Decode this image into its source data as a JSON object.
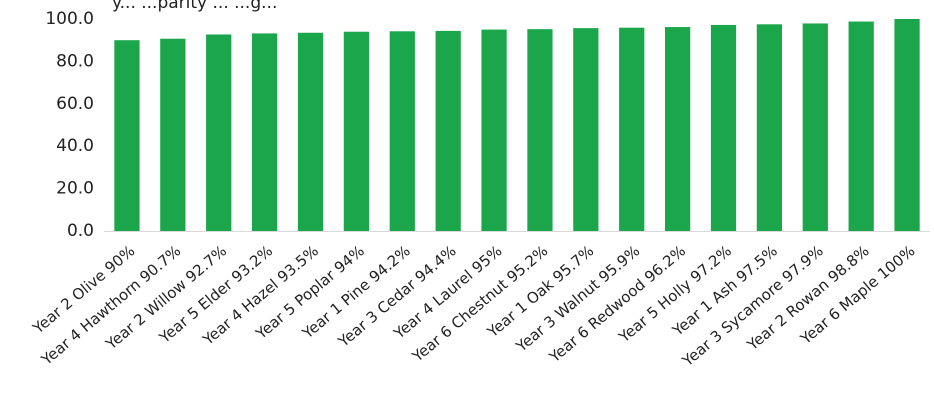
{
  "chart_data": {
    "type": "bar",
    "title_partial": "y... ...parity ... ...g...",
    "categories": [
      "Year 2 Olive 90%",
      "Year 4 Hawthorn 90.7%",
      "Year 2 Willow 92.7%",
      "Year 5 Elder 93.2%",
      "Year 4 Hazel 93.5%",
      "Year 5 Poplar 94%",
      "Year 1 Pine 94.2%",
      "Year 3 Cedar 94.4%",
      "Year 4 Laurel 95%",
      "Year 6 Chestnut 95.2%",
      "Year 1 Oak 95.7%",
      "Year 3 Walnut 95.9%",
      "Year 6 Redwood 96.2%",
      "Year 5 Holly 97.2%",
      "Year 1 Ash 97.5%",
      "Year 3 Sycamore 97.9%",
      "Year 2 Rowan 98.8%",
      "Year 6 Maple 100%"
    ],
    "values": [
      90,
      90.7,
      92.7,
      93.2,
      93.5,
      94,
      94.2,
      94.4,
      95,
      95.2,
      95.7,
      95.9,
      96.2,
      97.2,
      97.5,
      97.9,
      98.8,
      100
    ],
    "y_ticks": [
      "0.0",
      "20.0",
      "40.0",
      "60.0",
      "80.0",
      "100.0"
    ],
    "ylim": [
      0,
      100
    ],
    "grid": false,
    "legend": "none",
    "bar_color": "#1ba64b"
  }
}
